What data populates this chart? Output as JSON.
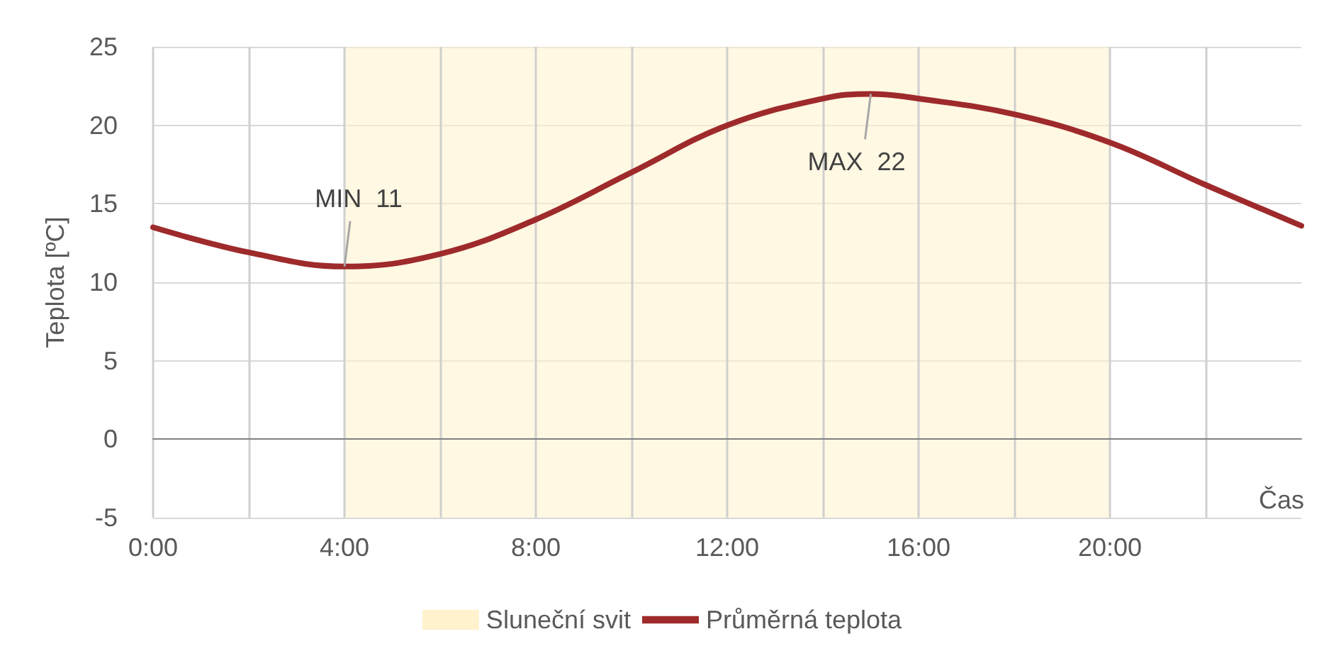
{
  "chart_data": {
    "type": "line",
    "ylabel": "Teplota [ºC]",
    "xlabel": "Čas",
    "xlim": [
      0,
      24
    ],
    "xticks": [
      {
        "value": 0,
        "label": "0:00"
      },
      {
        "value": 2,
        "label": null
      },
      {
        "value": 4,
        "label": "4:00"
      },
      {
        "value": 6,
        "label": null
      },
      {
        "value": 8,
        "label": "8:00"
      },
      {
        "value": 10,
        "label": null
      },
      {
        "value": 12,
        "label": "12:00"
      },
      {
        "value": 14,
        "label": null
      },
      {
        "value": 16,
        "label": "16:00"
      },
      {
        "value": 18,
        "label": null
      },
      {
        "value": 20,
        "label": "20:00"
      },
      {
        "value": 22,
        "label": null
      }
    ],
    "ylim": [
      -5,
      25
    ],
    "yticks": [
      -5,
      0,
      5,
      10,
      15,
      20,
      25
    ],
    "grid": true,
    "legend": "bottom",
    "marker": "none",
    "line_style": "solid",
    "series": [
      {
        "name": "Průměrná teplota",
        "color": "#9e2a2b",
        "x": [
          0,
          2,
          4,
          6,
          8,
          10,
          12,
          14,
          15,
          16,
          18,
          20,
          22,
          24
        ],
        "values": [
          13.5,
          11.9,
          11,
          11.8,
          14,
          17,
          20,
          21.7,
          22,
          21.7,
          20.7,
          18.9,
          16.2,
          13.6
        ]
      }
    ],
    "bands": [
      {
        "axis": "x",
        "from": 4,
        "to": 20,
        "label": "Sluneční svit",
        "color": "#fff2cc"
      }
    ],
    "annotations": [
      {
        "text": "MIN  11",
        "x": 4,
        "y": 11
      },
      {
        "text": "MAX  22",
        "x": 15,
        "y": 22
      }
    ]
  }
}
